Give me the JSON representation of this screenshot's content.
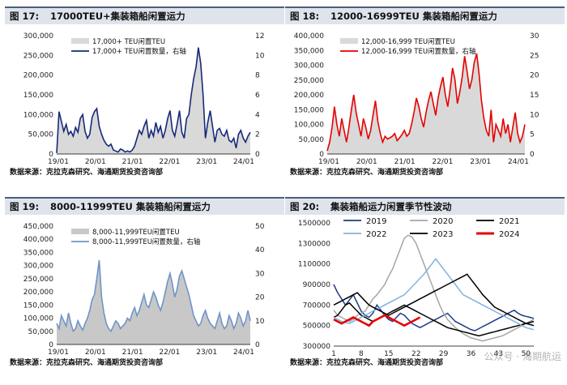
{
  "panels": [
    {
      "fig": "图 17:",
      "title": "17000TEU+集装箱船闲置运力",
      "source": "数据来源：克拉克森研究、海通期货投资咨询部"
    },
    {
      "fig": "图 18:",
      "title": "12000-16999TEU 集装箱船闲置运力",
      "source": "数据来源：克拉克森研究、海通期货投资咨询部"
    },
    {
      "fig": "图 19:",
      "title": "8000-11999TEU 集装箱船闲置运力",
      "source": "数据来源：克拉克森研究、海通期货投资咨询部"
    },
    {
      "fig": "图 20:",
      "title": "集装箱船运力闲置季节性波动",
      "source": "数据来源：克拉克森研究、海通期货投资咨询部"
    }
  ],
  "watermark": "公众号 · 海期航运",
  "chart_data": [
    {
      "type": "area+line",
      "x_ticks": [
        "19/01",
        "20/01",
        "21/01",
        "22/01",
        "23/01",
        "24/01"
      ],
      "ylim": [
        0,
        300000
      ],
      "y_ticks": [
        "0",
        "50,000",
        "100,000",
        "150,000",
        "200,000",
        "250,000",
        "300,000"
      ],
      "y2lim": [
        0,
        12
      ],
      "y2_ticks": [
        "0",
        "2",
        "4",
        "6",
        "8",
        "10",
        "12"
      ],
      "area_color": "#d9d9d9",
      "line_color": "#17297a",
      "series": [
        {
          "name": "17,000+ TEU闲置TEU",
          "kind": "area",
          "values": [
            2,
            110,
            85,
            60,
            75,
            50,
            60,
            45,
            70,
            55,
            90,
            100,
            60,
            40,
            50,
            95,
            110,
            115,
            70,
            50,
            35,
            25,
            20,
            25,
            10,
            8,
            5,
            12,
            10,
            5,
            8,
            5,
            10,
            20,
            40,
            60,
            50,
            70,
            85,
            40,
            60,
            45,
            80,
            55,
            70,
            40,
            60,
            90,
            110,
            60,
            45,
            75,
            110,
            55,
            40,
            90,
            100,
            150,
            190,
            220,
            270,
            230,
            150,
            40,
            80,
            110,
            70,
            30,
            60,
            65,
            50,
            45,
            60,
            35,
            30,
            40,
            15,
            50,
            60,
            40,
            30,
            45,
            55
          ]
        },
        {
          "name": "17,000+ TEU闲置数量，右轴",
          "kind": "line",
          "axis": "right",
          "values": [
            0.1,
            4.3,
            3.3,
            2.3,
            3.0,
            2.0,
            2.3,
            1.8,
            2.7,
            2.2,
            3.6,
            4.0,
            2.3,
            1.6,
            2.0,
            3.7,
            4.3,
            4.6,
            2.8,
            2.0,
            1.4,
            1.0,
            0.8,
            1.0,
            0.4,
            0.3,
            0.2,
            0.5,
            0.4,
            0.2,
            0.3,
            0.2,
            0.4,
            0.8,
            1.6,
            2.4,
            2.0,
            2.8,
            3.4,
            1.6,
            2.4,
            1.8,
            3.2,
            2.2,
            2.8,
            1.6,
            2.4,
            3.6,
            4.4,
            2.4,
            1.8,
            3.0,
            4.4,
            2.2,
            1.6,
            3.6,
            4.0,
            6.0,
            7.6,
            8.8,
            10.8,
            9.2,
            6.0,
            1.6,
            3.2,
            4.4,
            2.8,
            1.2,
            2.4,
            2.6,
            2.0,
            1.8,
            2.4,
            1.4,
            1.2,
            1.6,
            0.6,
            2.0,
            2.4,
            1.6,
            1.2,
            1.8,
            2.2
          ]
        }
      ]
    },
    {
      "type": "area+line",
      "x_ticks": [
        "19/01",
        "20/01",
        "21/01",
        "22/01",
        "23/01",
        "24/01"
      ],
      "ylim": [
        0,
        400000
      ],
      "y_ticks": [
        "0",
        "50,000",
        "100,000",
        "150,000",
        "200,000",
        "250,000",
        "300,000",
        "350,000",
        "400,000"
      ],
      "y2lim": [
        0,
        30
      ],
      "y2_ticks": [
        "0",
        "5",
        "10",
        "15",
        "20",
        "25",
        "30"
      ],
      "area_color": "#d9d9d9",
      "line_color": "#e60000",
      "series": [
        {
          "name": "12,000-16,999 TEU闲置TEU",
          "kind": "area",
          "values": [
            10,
            40,
            90,
            160,
            100,
            60,
            120,
            80,
            40,
            90,
            150,
            200,
            140,
            100,
            60,
            120,
            90,
            50,
            80,
            130,
            180,
            110,
            70,
            40,
            60,
            50,
            55,
            60,
            70,
            45,
            55,
            65,
            80,
            60,
            70,
            100,
            140,
            190,
            160,
            120,
            90,
            140,
            180,
            210,
            170,
            130,
            190,
            230,
            260,
            200,
            160,
            220,
            290,
            250,
            170,
            210,
            260,
            330,
            280,
            220,
            250,
            310,
            340,
            270,
            180,
            120,
            80,
            60,
            150,
            40,
            100,
            80,
            60,
            120,
            70,
            100,
            40,
            90,
            140,
            70,
            40,
            60,
            100
          ]
        },
        {
          "name": "12,000-16,999 TEU闲置数量，右轴",
          "kind": "line",
          "axis": "right",
          "values": [
            0.8,
            3,
            6.8,
            12,
            7.5,
            4.5,
            9,
            6,
            3,
            6.8,
            11.2,
            15,
            10.5,
            7.5,
            4.5,
            9,
            6.8,
            3.8,
            6,
            9.8,
            13.5,
            8.2,
            5.2,
            3,
            4.5,
            3.8,
            4.1,
            4.5,
            5.2,
            3.4,
            4.1,
            4.9,
            6,
            4.5,
            5.2,
            7.5,
            10.5,
            14.2,
            12,
            9,
            6.8,
            10.5,
            13.5,
            15.8,
            12.8,
            9.8,
            14.2,
            17.2,
            19.5,
            15,
            12,
            16.5,
            21.8,
            18.8,
            12.8,
            15.8,
            19.5,
            24.8,
            21,
            16.5,
            18.8,
            23.2,
            25.5,
            20.2,
            13.5,
            9,
            6,
            4.5,
            11.2,
            3,
            7.5,
            6,
            4.5,
            9,
            5.2,
            7.5,
            3,
            6.8,
            10.5,
            5.2,
            3,
            4.5,
            7.5
          ]
        }
      ]
    },
    {
      "type": "area+line",
      "x_ticks": [
        "19/01",
        "20/01",
        "21/01",
        "22/01",
        "23/01",
        "24/01"
      ],
      "ylim": [
        0,
        450000
      ],
      "y_ticks": [
        "0",
        "50,000",
        "100,000",
        "150,000",
        "200,000",
        "250,000",
        "300,000",
        "350,000",
        "400,000",
        "450,000"
      ],
      "y2lim": [
        0,
        50
      ],
      "y2_ticks": [
        "0",
        "10",
        "20",
        "30",
        "40",
        "50"
      ],
      "area_color": "#c8c8c8",
      "line_color": "#6f94c7",
      "series": [
        {
          "name": "8,000-11,999TEU闲置TEU",
          "kind": "area",
          "values": [
            80,
            60,
            110,
            90,
            70,
            120,
            80,
            50,
            60,
            90,
            70,
            55,
            80,
            100,
            130,
            170,
            190,
            250,
            320,
            180,
            120,
            80,
            60,
            50,
            70,
            90,
            80,
            60,
            70,
            80,
            100,
            90,
            120,
            140,
            110,
            130,
            160,
            190,
            150,
            140,
            170,
            200,
            180,
            150,
            130,
            160,
            200,
            240,
            270,
            230,
            180,
            210,
            260,
            280,
            250,
            220,
            190,
            150,
            110,
            90,
            70,
            80,
            110,
            130,
            100,
            80,
            70,
            60,
            90,
            120,
            80,
            60,
            70,
            110,
            90,
            60,
            80,
            120,
            100,
            70,
            90,
            130,
            90
          ]
        },
        {
          "name": "8,000-11,999TEU闲置数量，右轴",
          "kind": "line",
          "axis": "right",
          "values": [
            8.9,
            6.7,
            12.2,
            10,
            7.8,
            13.3,
            8.9,
            5.6,
            6.7,
            10,
            7.8,
            6.1,
            8.9,
            11.1,
            14.4,
            18.9,
            21.1,
            27.8,
            35.6,
            20,
            13.3,
            8.9,
            6.7,
            5.6,
            7.8,
            10,
            8.9,
            6.7,
            7.8,
            8.9,
            11.1,
            10,
            13.3,
            15.6,
            12.2,
            14.4,
            17.8,
            21.1,
            16.7,
            15.6,
            18.9,
            22.2,
            20,
            16.7,
            14.4,
            17.8,
            22.2,
            26.7,
            30,
            25.6,
            20,
            23.3,
            28.9,
            31.1,
            27.8,
            24.4,
            21.1,
            16.7,
            12.2,
            10,
            7.8,
            8.9,
            12.2,
            14.4,
            11.1,
            8.9,
            7.8,
            6.7,
            10,
            13.3,
            8.9,
            6.7,
            7.8,
            12.2,
            10,
            6.7,
            8.9,
            13.3,
            11.1,
            7.8,
            10,
            14.4,
            10
          ]
        }
      ]
    },
    {
      "type": "line",
      "x_ticks": [
        "1",
        "8",
        "15",
        "22",
        "29",
        "36",
        "43",
        "50"
      ],
      "xlim": [
        1,
        52
      ],
      "ylim": [
        300000,
        1500000
      ],
      "y_ticks": [
        "300000",
        "500000",
        "700000",
        "900000",
        "1100000",
        "1300000",
        "1500000"
      ],
      "series": [
        {
          "name": "2019",
          "color": "#1f3a8a",
          "values": [
            900,
            820,
            760,
            700,
            750,
            800,
            720,
            640,
            600,
            580,
            620,
            700,
            650,
            600,
            560,
            540,
            580,
            620,
            600,
            560,
            520,
            500,
            480,
            500,
            520,
            540,
            560,
            580,
            600,
            620,
            580,
            540,
            520,
            500,
            480,
            460,
            450,
            470,
            490,
            510,
            530,
            550,
            570,
            590,
            610,
            630,
            650,
            620,
            600,
            590,
            580,
            570
          ]
        },
        {
          "name": "2020",
          "color": "#a6a6a6",
          "values": [
            650,
            600,
            580,
            560,
            540,
            560,
            600,
            620,
            640,
            700,
            760,
            800,
            850,
            900,
            980,
            1050,
            1150,
            1250,
            1350,
            1380,
            1360,
            1300,
            1200,
            1100,
            1000,
            900,
            800,
            700,
            620,
            560,
            520,
            480,
            450,
            420,
            400,
            380,
            370,
            360,
            350,
            360,
            370,
            380,
            390,
            400,
            420,
            440,
            460,
            480,
            500,
            520,
            540,
            560
          ]
        },
        {
          "name": "2021",
          "color": "#000000",
          "values": [
            580,
            600,
            650,
            700,
            720,
            680,
            640,
            600,
            580,
            560,
            540,
            560,
            580,
            600,
            620,
            640,
            660,
            680,
            700,
            680,
            660,
            640,
            620,
            600,
            580,
            560,
            540,
            520,
            500,
            480,
            470,
            460,
            450,
            440,
            430,
            420,
            410,
            400,
            410,
            420,
            430,
            440,
            450,
            460,
            470,
            480,
            490,
            500,
            510,
            520,
            530,
            540
          ]
        },
        {
          "name": "2022",
          "color": "#7fb3e0",
          "values": [
            580,
            560,
            540,
            530,
            520,
            540,
            560,
            580,
            600,
            620,
            640,
            660,
            680,
            700,
            720,
            740,
            760,
            780,
            800,
            840,
            880,
            920,
            960,
            1000,
            1050,
            1100,
            1150,
            1100,
            1050,
            1000,
            950,
            900,
            850,
            800,
            780,
            760,
            740,
            720,
            700,
            680,
            660,
            640,
            620,
            600,
            580,
            560,
            540,
            520,
            500,
            480,
            470,
            460
          ]
        },
        {
          "name": "2023",
          "color": "#000000",
          "values": [
            700,
            720,
            740,
            760,
            780,
            800,
            820,
            780,
            740,
            700,
            680,
            660,
            640,
            620,
            600,
            620,
            640,
            660,
            680,
            700,
            720,
            740,
            760,
            780,
            800,
            820,
            840,
            860,
            880,
            900,
            920,
            940,
            960,
            980,
            1000,
            950,
            900,
            850,
            800,
            760,
            720,
            680,
            660,
            640,
            620,
            600,
            580,
            560,
            540,
            520,
            510,
            500
          ]
        },
        {
          "name": "2024",
          "color": "#e60000",
          "values": [
            560,
            540,
            520,
            540,
            560,
            580,
            560,
            540,
            520,
            500,
            540,
            560,
            580,
            600,
            580,
            560,
            540,
            520,
            500,
            520,
            540,
            560,
            580
          ]
        }
      ]
    }
  ]
}
